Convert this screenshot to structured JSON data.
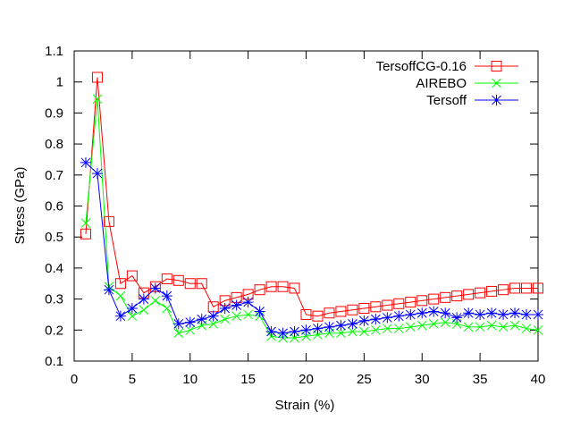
{
  "chart_data": {
    "type": "line",
    "title": "",
    "xlabel": "Strain (%)",
    "ylabel": "Stress (GPa)",
    "xlim": [
      0,
      40
    ],
    "ylim": [
      0.1,
      1.1
    ],
    "xticks": [
      0,
      5,
      10,
      15,
      20,
      25,
      30,
      35,
      40
    ],
    "yticks": [
      0.1,
      0.2,
      0.3,
      0.4,
      0.5,
      0.6,
      0.7,
      0.8,
      0.9,
      1,
      1.1
    ],
    "grid": false,
    "legend_position": "top-right",
    "x": [
      1,
      2,
      3,
      4,
      5,
      6,
      7,
      8,
      9,
      10,
      11,
      12,
      13,
      14,
      15,
      16,
      17,
      18,
      19,
      20,
      21,
      22,
      23,
      24,
      25,
      26,
      27,
      28,
      29,
      30,
      31,
      32,
      33,
      34,
      35,
      36,
      37,
      38,
      39,
      40
    ],
    "series": [
      {
        "name": "TersoffCG-0.16",
        "color": "#ff0000",
        "marker": "square",
        "values": [
          0.51,
          1.015,
          0.55,
          0.35,
          0.375,
          0.32,
          0.34,
          0.365,
          0.36,
          0.35,
          0.35,
          0.275,
          0.295,
          0.305,
          0.315,
          0.33,
          0.34,
          0.34,
          0.335,
          0.25,
          0.245,
          0.255,
          0.26,
          0.265,
          0.27,
          0.275,
          0.28,
          0.285,
          0.29,
          0.295,
          0.3,
          0.305,
          0.31,
          0.315,
          0.32,
          0.325,
          0.33,
          0.335,
          0.335,
          0.335
        ]
      },
      {
        "name": "AIREBO",
        "color": "#00ff00",
        "marker": "x",
        "values": [
          0.545,
          0.945,
          0.34,
          0.31,
          0.245,
          0.265,
          0.295,
          0.27,
          0.19,
          0.2,
          0.215,
          0.22,
          0.235,
          0.245,
          0.25,
          0.245,
          0.18,
          0.175,
          0.175,
          0.18,
          0.185,
          0.19,
          0.19,
          0.195,
          0.195,
          0.2,
          0.205,
          0.205,
          0.21,
          0.215,
          0.22,
          0.225,
          0.22,
          0.21,
          0.21,
          0.215,
          0.21,
          0.215,
          0.205,
          0.2
        ]
      },
      {
        "name": "Tersoff",
        "color": "#0000ff",
        "marker": "star",
        "values": [
          0.74,
          0.705,
          0.33,
          0.245,
          0.27,
          0.3,
          0.335,
          0.31,
          0.22,
          0.225,
          0.235,
          0.245,
          0.27,
          0.28,
          0.29,
          0.26,
          0.195,
          0.19,
          0.195,
          0.2,
          0.205,
          0.21,
          0.215,
          0.22,
          0.23,
          0.235,
          0.24,
          0.245,
          0.25,
          0.255,
          0.26,
          0.255,
          0.24,
          0.255,
          0.25,
          0.255,
          0.25,
          0.255,
          0.25,
          0.25
        ]
      }
    ]
  }
}
